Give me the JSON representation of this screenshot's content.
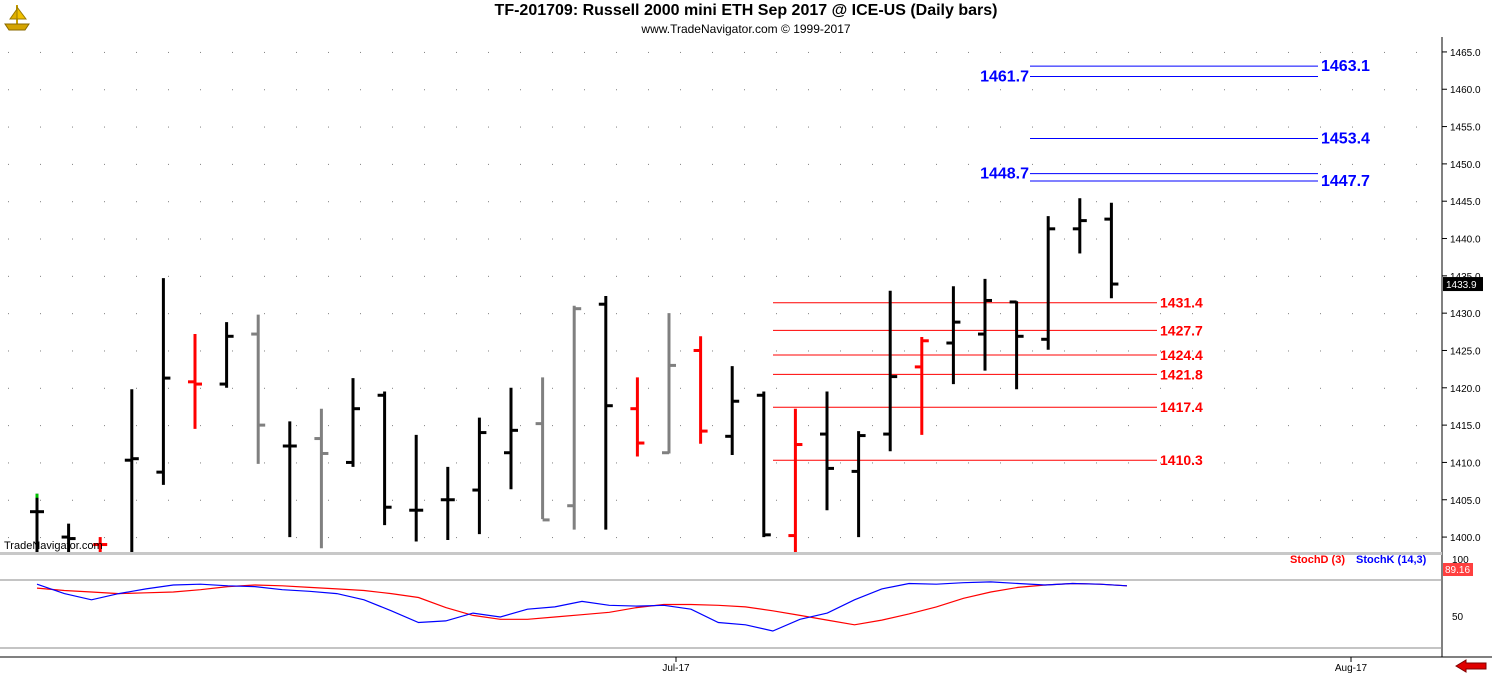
{
  "header": {
    "title": "TF-201709:  Russell 2000 mini ETH Sep 2017 @ ICE-US  (Daily bars)",
    "copyright": "www.TradeNavigator.com © 1999-2017",
    "watermark": "TradeNavigator.com",
    "logo_icon": "gold-ship-logo-icon",
    "nav_icon": "red-left-arrow-icon"
  },
  "colors": {
    "up_bar": "#000000",
    "down_bar": "#ff0000",
    "neutral_bar": "#808080",
    "level_blue": "#0000ff",
    "level_red": "#ff0000",
    "stoch_d": "#ff0000",
    "stoch_k": "#0000ff",
    "last_price_box": "#000000"
  },
  "chart_data": [
    {
      "type": "ohlc",
      "title": "TF-201709:  Russell 2000 mini ETH Sep 2017 @ ICE-US  (Daily bars)",
      "ylim": [
        1398,
        1467
      ],
      "yticks": [
        "1400.0",
        "1405.0",
        "1410.0",
        "1415.0",
        "1420.0",
        "1425.0",
        "1430.0",
        "1435.0",
        "1440.0",
        "1445.0",
        "1450.0",
        "1455.0",
        "1460.0",
        "1465.0"
      ],
      "xticks": [
        "Jul-17",
        "Aug-17"
      ],
      "last_price": "1433.9",
      "bars": [
        {
          "o": 1403.4,
          "h": 1405.8,
          "l": 1398.0,
          "c": 1403.4,
          "color": "black"
        },
        {
          "o": 1400.0,
          "h": 1401.8,
          "l": 1398.0,
          "c": 1399.8,
          "color": "black"
        },
        {
          "o": 1399.0,
          "h": 1400.0,
          "l": 1398.0,
          "c": 1399.0,
          "color": "red"
        },
        {
          "o": 1410.3,
          "h": 1419.8,
          "l": 1398.0,
          "c": 1410.5,
          "color": "black"
        },
        {
          "o": 1408.7,
          "h": 1434.7,
          "l": 1407.0,
          "c": 1421.3,
          "color": "black"
        },
        {
          "o": 1420.8,
          "h": 1427.2,
          "l": 1414.5,
          "c": 1420.5,
          "color": "red"
        },
        {
          "o": 1420.5,
          "h": 1428.8,
          "l": 1420.0,
          "c": 1426.9,
          "color": "black"
        },
        {
          "o": 1427.2,
          "h": 1429.8,
          "l": 1409.8,
          "c": 1415.0,
          "color": "gray"
        },
        {
          "o": 1412.2,
          "h": 1415.5,
          "l": 1400.0,
          "c": 1412.2,
          "color": "black"
        },
        {
          "o": 1413.2,
          "h": 1417.2,
          "l": 1398.5,
          "c": 1411.2,
          "color": "gray"
        },
        {
          "o": 1410.0,
          "h": 1421.3,
          "l": 1409.4,
          "c": 1417.2,
          "color": "black"
        },
        {
          "o": 1419.0,
          "h": 1419.5,
          "l": 1401.6,
          "c": 1404.0,
          "color": "black"
        },
        {
          "o": 1403.6,
          "h": 1413.7,
          "l": 1399.4,
          "c": 1403.6,
          "color": "black"
        },
        {
          "o": 1405.0,
          "h": 1409.4,
          "l": 1399.6,
          "c": 1405.0,
          "color": "black"
        },
        {
          "o": 1406.3,
          "h": 1416.0,
          "l": 1400.4,
          "c": 1414.0,
          "color": "black"
        },
        {
          "o": 1411.3,
          "h": 1420.0,
          "l": 1406.4,
          "c": 1414.3,
          "color": "black"
        },
        {
          "o": 1415.2,
          "h": 1421.4,
          "l": 1402.4,
          "c": 1402.3,
          "color": "gray"
        },
        {
          "o": 1404.2,
          "h": 1431.0,
          "l": 1401.0,
          "c": 1430.6,
          "color": "gray"
        },
        {
          "o": 1431.2,
          "h": 1432.3,
          "l": 1401.0,
          "c": 1417.6,
          "color": "black"
        },
        {
          "o": 1417.2,
          "h": 1421.4,
          "l": 1410.8,
          "c": 1412.6,
          "color": "red"
        },
        {
          "o": 1411.3,
          "h": 1430.0,
          "l": 1411.2,
          "c": 1423.0,
          "color": "gray"
        },
        {
          "o": 1425.0,
          "h": 1426.9,
          "l": 1412.5,
          "c": 1414.2,
          "color": "red"
        },
        {
          "o": 1413.5,
          "h": 1422.9,
          "l": 1411.0,
          "c": 1418.2,
          "color": "black"
        },
        {
          "o": 1419.0,
          "h": 1419.5,
          "l": 1400.0,
          "c": 1400.3,
          "color": "black"
        },
        {
          "o": 1400.2,
          "h": 1417.2,
          "l": 1398.0,
          "c": 1412.4,
          "color": "red"
        },
        {
          "o": 1413.8,
          "h": 1419.5,
          "l": 1403.6,
          "c": 1409.2,
          "color": "black"
        },
        {
          "o": 1408.8,
          "h": 1414.2,
          "l": 1400.0,
          "c": 1413.6,
          "color": "black"
        },
        {
          "o": 1413.8,
          "h": 1433.0,
          "l": 1411.5,
          "c": 1421.5,
          "color": "black"
        },
        {
          "o": 1422.8,
          "h": 1426.8,
          "l": 1413.7,
          "c": 1426.3,
          "color": "red"
        },
        {
          "o": 1426.0,
          "h": 1433.6,
          "l": 1420.5,
          "c": 1428.8,
          "color": "black"
        },
        {
          "o": 1427.2,
          "h": 1434.6,
          "l": 1422.3,
          "c": 1431.7,
          "color": "black"
        },
        {
          "o": 1431.5,
          "h": 1431.6,
          "l": 1419.8,
          "c": 1426.9,
          "color": "black"
        },
        {
          "o": 1426.5,
          "h": 1443.0,
          "l": 1425.1,
          "c": 1441.3,
          "color": "black"
        },
        {
          "o": 1441.3,
          "h": 1445.4,
          "l": 1438.0,
          "c": 1442.4,
          "color": "black"
        },
        {
          "o": 1442.6,
          "h": 1444.8,
          "l": 1432.0,
          "c": 1433.9,
          "color": "black"
        }
      ],
      "levels_blue": [
        {
          "value": 1463.1,
          "label": "1463.1",
          "side": "right"
        },
        {
          "value": 1461.7,
          "label": "1461.7",
          "side": "left"
        },
        {
          "value": 1453.4,
          "label": "1453.4",
          "side": "right"
        },
        {
          "value": 1448.7,
          "label": "1448.7",
          "side": "left"
        },
        {
          "value": 1447.7,
          "label": "1447.7",
          "side": "right"
        }
      ],
      "levels_red": [
        {
          "value": 1431.4,
          "label": "1431.4"
        },
        {
          "value": 1427.7,
          "label": "1427.7"
        },
        {
          "value": 1424.4,
          "label": "1424.4"
        },
        {
          "value": 1421.8,
          "label": "1421.8"
        },
        {
          "value": 1417.4,
          "label": "1417.4"
        },
        {
          "value": 1410.3,
          "label": "1410.3"
        }
      ]
    },
    {
      "type": "line",
      "title": "",
      "ylim": [
        0,
        100
      ],
      "yticks": [
        "100",
        "50"
      ],
      "last_value": "89.16",
      "series": [
        {
          "name": "StochD (3)",
          "color": "red",
          "values": [
            87,
            84,
            82,
            80,
            81,
            82,
            85,
            89,
            91,
            90,
            88,
            86,
            84,
            80,
            75,
            62,
            52,
            47,
            47,
            50,
            53,
            56,
            62,
            66,
            66,
            65,
            63,
            58,
            52,
            46,
            40,
            46,
            54,
            63,
            74,
            82,
            88,
            91,
            93,
            92,
            90
          ]
        },
        {
          "name": "StochK (14,3)",
          "color": "blue",
          "values": [
            92,
            80,
            72,
            80,
            86,
            91,
            92,
            90,
            89,
            85,
            83,
            80,
            72,
            58,
            43,
            45,
            55,
            50,
            60,
            63,
            70,
            65,
            64,
            65,
            60,
            43,
            40,
            32,
            47,
            55,
            72,
            86,
            93,
            92,
            94,
            95,
            93,
            91,
            93,
            92,
            90
          ]
        }
      ]
    }
  ]
}
